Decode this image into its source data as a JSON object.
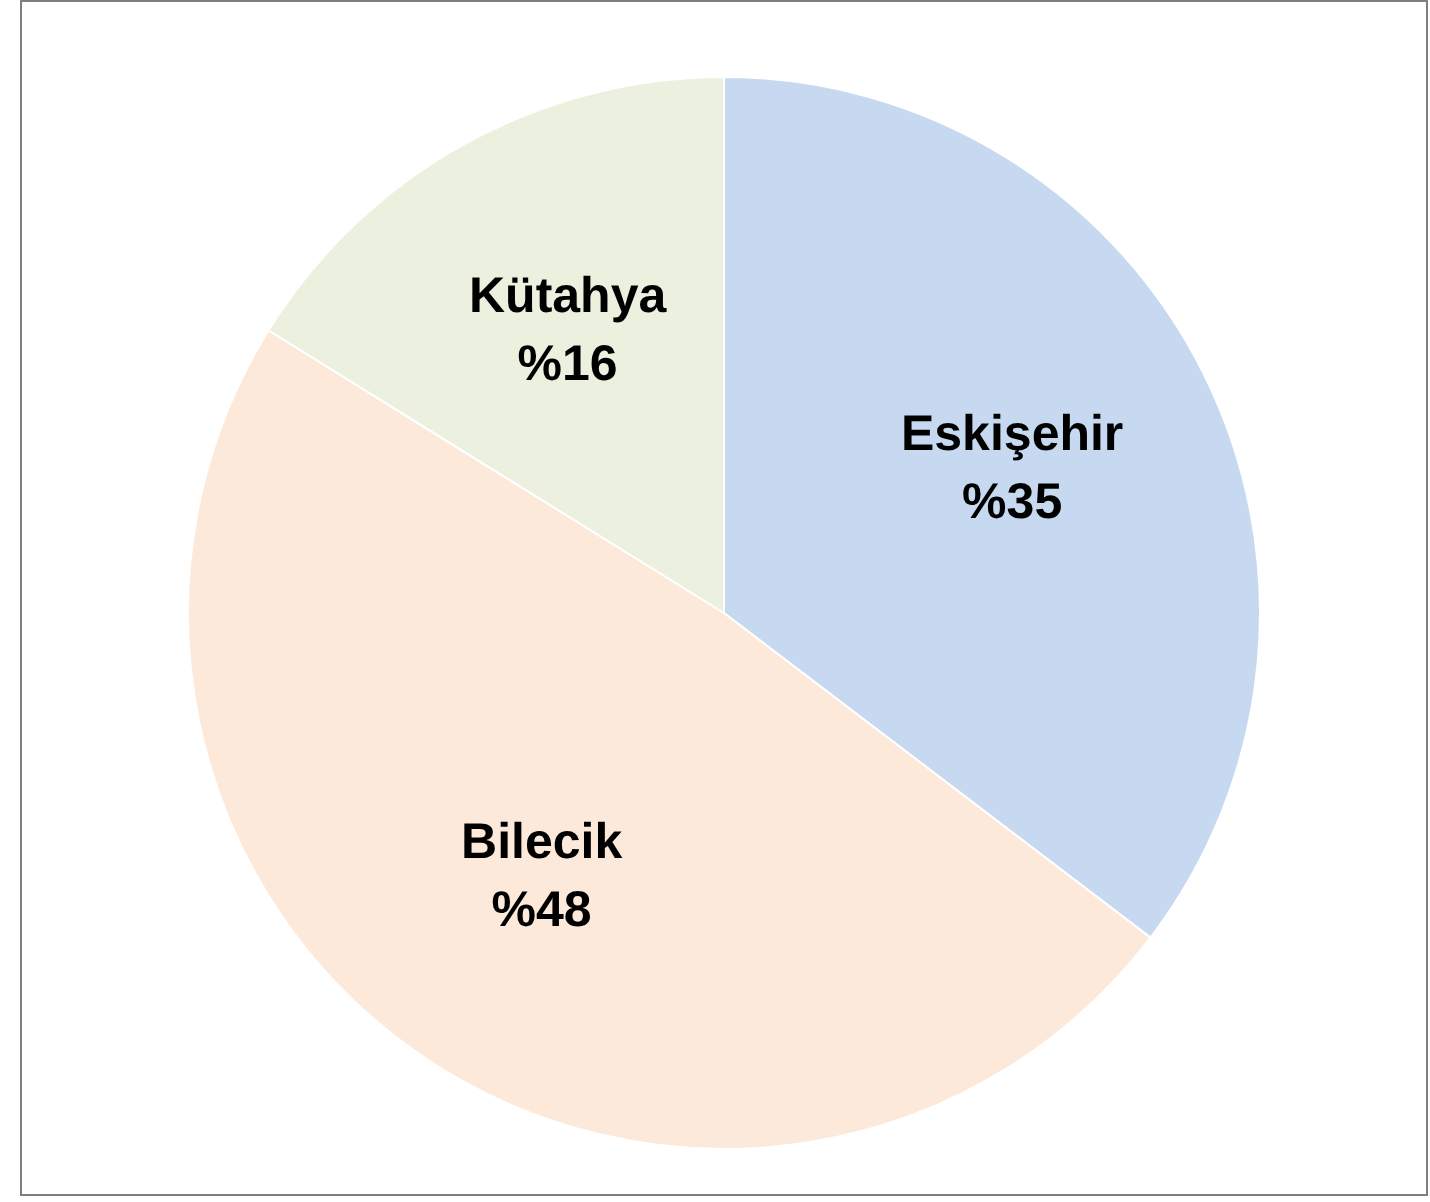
{
  "chart_data": {
    "type": "pie",
    "categories": [
      "Eskişehir",
      "Bilecik",
      "Kütahya"
    ],
    "values": [
      35,
      48,
      16
    ],
    "value_labels": [
      "%35",
      "%48",
      "%16"
    ],
    "colors": [
      "#c6d9f1",
      "#fde9d9",
      "#ebf1de"
    ],
    "legend": false
  }
}
